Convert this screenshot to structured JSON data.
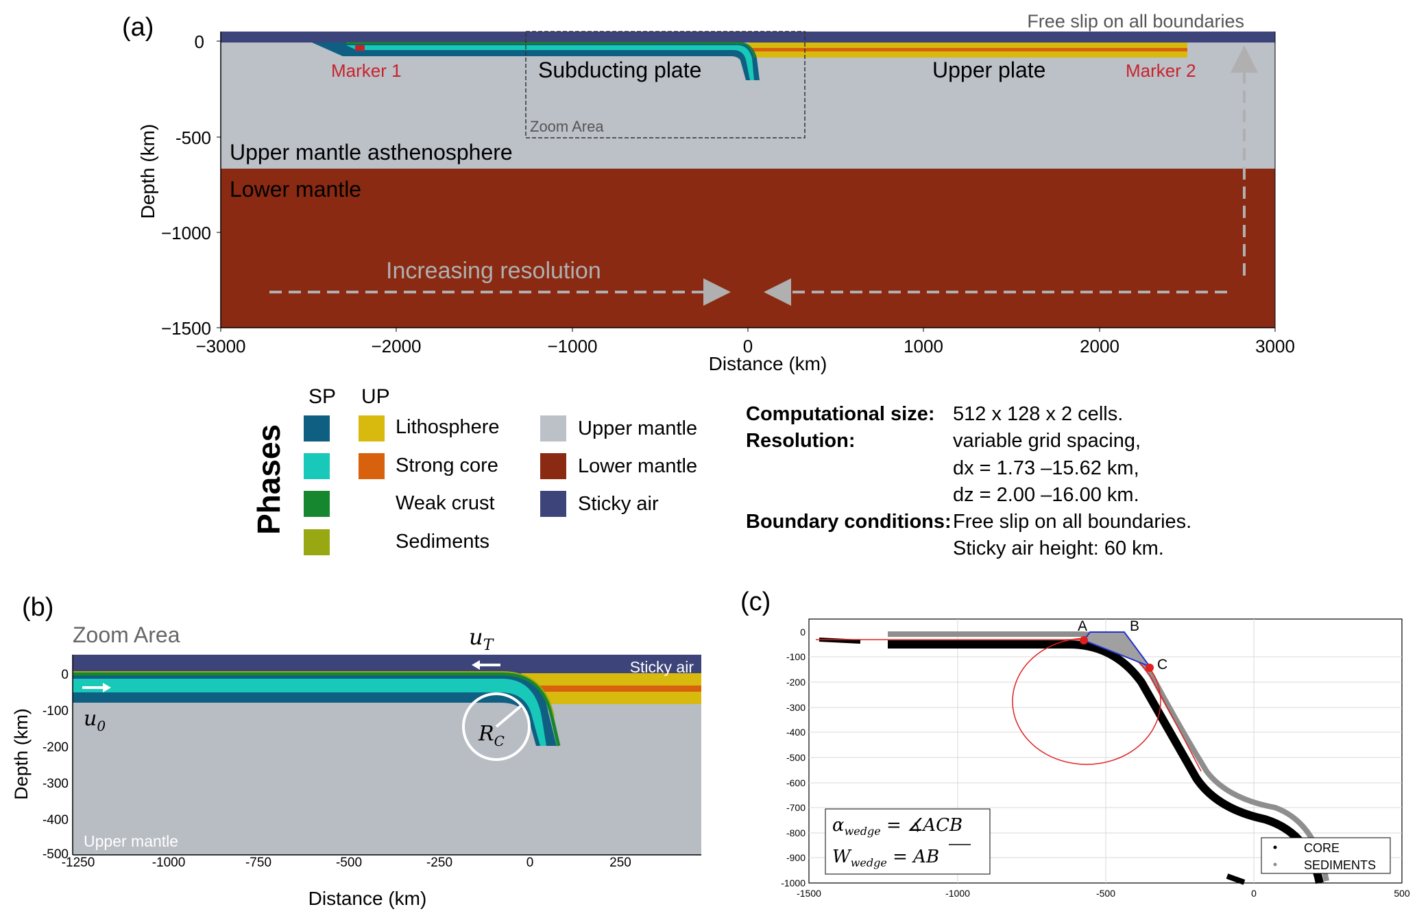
{
  "colors": {
    "sticky_air": "#3c4479",
    "upper_mantle": "#bcc0c7",
    "lower_mantle": "#8a2a12",
    "sp_lithosphere": "#0f5f82",
    "sp_strong_core": "#18c8b8",
    "sp_weak_crust": "#16862f",
    "sp_sediments": "#97a812",
    "up_lithosphere": "#d8b90e",
    "up_strong_core": "#d8610e",
    "marker": "#c8232c",
    "arrow_gray": "#b0b0b0"
  },
  "panel_a": {
    "label": "(a)",
    "top_note": "Free slip on all boundaries",
    "marker1": "Marker 1",
    "marker2": "Marker 2",
    "subducting_plate": "Subducting plate",
    "upper_plate": "Upper plate",
    "zoom_area": "Zoom Area",
    "upper_mantle_label": "Upper mantle asthenosphere",
    "lower_mantle_label": "Lower mantle",
    "increasing_resolution": "Increasing resolution",
    "ylabel": "Depth (km)",
    "xlabel": "Distance (km)",
    "yticks": [
      "0",
      "-500",
      "−1000",
      "−1500"
    ],
    "xticks": [
      "−3000",
      "−2000",
      "−1000",
      "0",
      "1000",
      "2000",
      "3000"
    ]
  },
  "legend": {
    "title": "Phases",
    "sp": "SP",
    "up": "UP",
    "lithosphere": "Lithosphere",
    "strong_core": "Strong core",
    "weak_crust": "Weak crust",
    "sediments": "Sediments",
    "upper_mantle": "Upper mantle",
    "lower_mantle": "Lower mantle",
    "sticky_air": "Sticky air"
  },
  "specs": {
    "computational_size_key": "Computational size:",
    "computational_size_val": "512 x 128 x 2 cells.",
    "resolution_key": "Resolution:",
    "resolution_val1": "variable grid spacing,",
    "resolution_val2": "dx = 1.73 –15.62  km,",
    "resolution_val3": "dz = 2.00 –16.00  km.",
    "boundary_key": "Boundary conditions:",
    "boundary_val1": "Free slip on all boundaries.",
    "boundary_val2": "Sticky air height: 60 km."
  },
  "panel_b": {
    "label": "(b)",
    "zoom_area": "Zoom Area",
    "sticky_air": "Sticky air",
    "upper_mantle": "Upper mantle",
    "uT": "u",
    "uT_sub": "T",
    "u0": "u",
    "u0_sub": "0",
    "Rc": "R",
    "Rc_sub": "C",
    "ylabel": "Depth (km)",
    "xlabel": "Distance (km)",
    "yticks": [
      "0",
      "-100",
      "-200",
      "-300",
      "-400",
      "-500"
    ],
    "xticks": [
      "-1250",
      "-1000",
      "-750",
      "-500",
      "-250",
      "0",
      "250"
    ]
  },
  "panel_c": {
    "label": "(c)",
    "point_a": "A",
    "point_b": "B",
    "point_c": "C",
    "eq1_lhs": "α",
    "eq1_sub": "wedge",
    "eq1_rhs": " = ∡ACB",
    "eq2_lhs": "W",
    "eq2_sub": "wedge",
    "eq2_rhs": " = AB",
    "legend_core": "CORE",
    "legend_sediments": "SEDIMENTS",
    "yticks": [
      "0",
      "-100",
      "-200",
      "-300",
      "-400",
      "-500",
      "-600",
      "-700",
      "-800",
      "-900",
      "-1000"
    ],
    "xticks": [
      "-1500",
      "-1000",
      "-500",
      "0",
      "500"
    ]
  }
}
